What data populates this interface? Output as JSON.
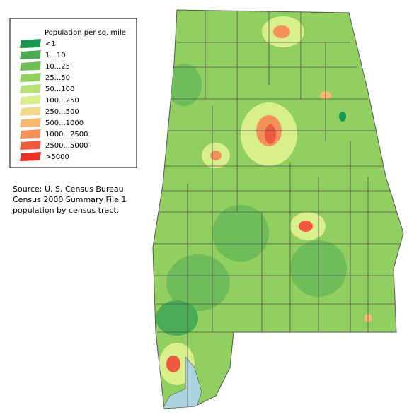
{
  "legend": {
    "title": "Population per sq. mile",
    "items": [
      {
        "label": "<1",
        "color": "#1a9850"
      },
      {
        "label": "1...10",
        "color": "#4bab55"
      },
      {
        "label": "10...25",
        "color": "#6fbd5a"
      },
      {
        "label": "25...50",
        "color": "#91cf60"
      },
      {
        "label": "50...100",
        "color": "#b7e07a"
      },
      {
        "label": "100...250",
        "color": "#d9ef8b"
      },
      {
        "label": "250...500",
        "color": "#f3d98c"
      },
      {
        "label": "500...1000",
        "color": "#f8b870"
      },
      {
        "label": "1000...2500",
        "color": "#f4915a"
      },
      {
        "label": "2500...5000",
        "color": "#ee5a3f"
      },
      {
        "label": ">5000",
        "color": "#e8322a"
      }
    ]
  },
  "source": [
    "Source: U. S. Census Bureau",
    "Census 2000 Summary File 1",
    "population by census tract."
  ]
}
